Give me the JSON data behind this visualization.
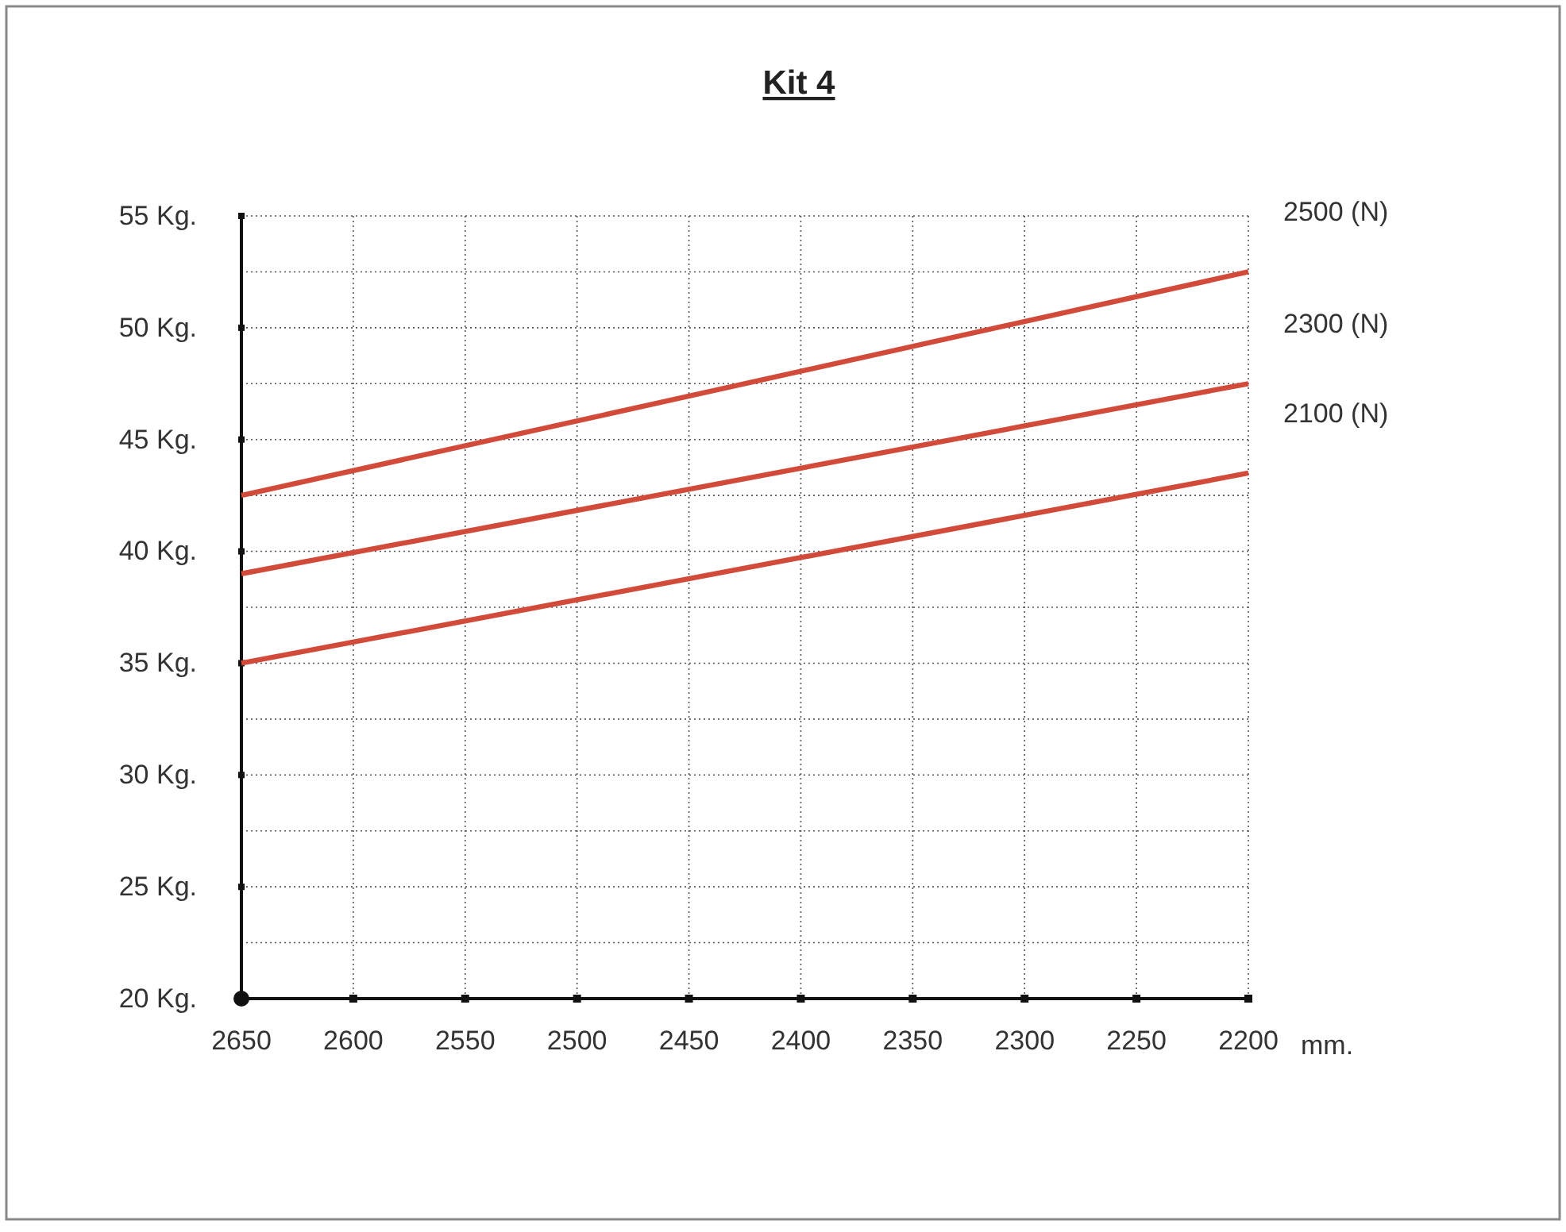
{
  "chart_data": {
    "type": "line",
    "title": "Kit 4",
    "xlabel": "mm.",
    "x": [
      2650,
      2200
    ],
    "series": [
      {
        "name": "2500 (N)",
        "color": "#d24a3a",
        "values": [
          42.5,
          52.5
        ]
      },
      {
        "name": "2300 (N)",
        "color": "#d24a3a",
        "values": [
          39,
          47.5
        ]
      },
      {
        "name": "2100 (N)",
        "color": "#d24a3a",
        "values": [
          35,
          43.5
        ]
      }
    ],
    "xlim": [
      2650,
      2200
    ],
    "xticks": [
      2650,
      2600,
      2550,
      2500,
      2450,
      2400,
      2350,
      2300,
      2250,
      2200
    ],
    "ylim": [
      20,
      55
    ],
    "yticks": [
      {
        "value": 20,
        "label": "20 Kg."
      },
      {
        "value": 22.5,
        "label": null
      },
      {
        "value": 25,
        "label": "25 Kg."
      },
      {
        "value": 27.5,
        "label": null
      },
      {
        "value": 30,
        "label": "30 Kg."
      },
      {
        "value": 32.5,
        "label": null
      },
      {
        "value": 35,
        "label": "35 Kg."
      },
      {
        "value": 37.5,
        "label": null
      },
      {
        "value": 40,
        "label": "40 Kg."
      },
      {
        "value": 42.5,
        "label": null
      },
      {
        "value": 45,
        "label": "45 Kg."
      },
      {
        "value": 47.5,
        "label": null
      },
      {
        "value": 50,
        "label": "50 Kg."
      },
      {
        "value": 52.5,
        "label": null
      },
      {
        "value": 55,
        "label": "55 Kg."
      }
    ],
    "grid": true,
    "line_style": "solid"
  }
}
